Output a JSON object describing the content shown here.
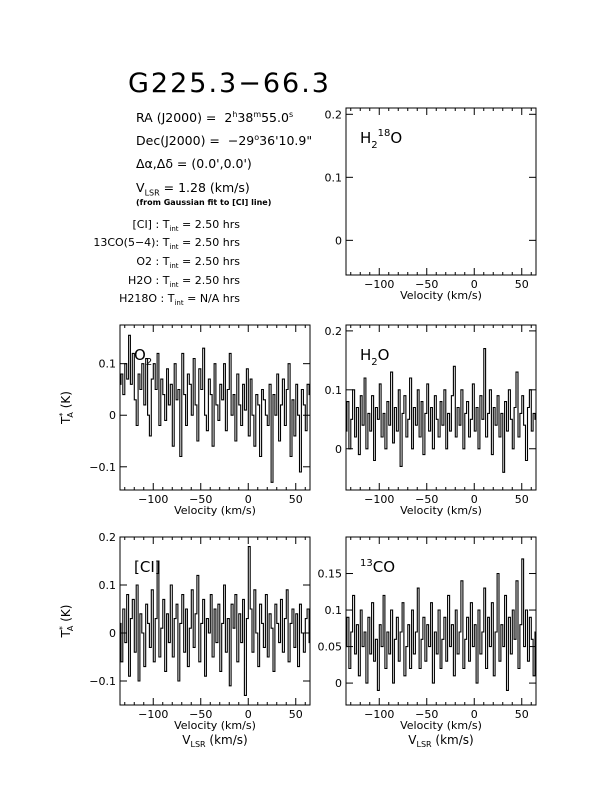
{
  "header": {
    "source": "G225.3−66.3",
    "ra_label": "RA (J2000) =",
    "ra_h": "2",
    "ra_m": "38",
    "ra_s": "55.0",
    "dec_label": "Dec(J2000) =",
    "dec_d": "−29",
    "dec_am": "36",
    "dec_as": "10.9",
    "offset_label": "Δα,Δδ =",
    "offset_value": "(0.0',0.0')",
    "vlsr_label": "V",
    "vlsr_sub": "LSR",
    "vlsr_value": " = 1.28 (km/s)",
    "vlsr_note": "(from Gaussian fit to [CI] line)"
  },
  "integration": [
    {
      "line": "[CI] :",
      "time": "2.50 hrs"
    },
    {
      "line": "13CO(5−4):",
      "time": "2.50 hrs"
    },
    {
      "line": "O2 :",
      "time": "2.50 hrs"
    },
    {
      "line": "H2O :",
      "time": "2.50 hrs"
    },
    {
      "line": "H218O :",
      "time": "N/A hrs"
    }
  ],
  "integration_label": "T",
  "integration_sub": "int",
  "integration_eq": " = ",
  "axis_labels": {
    "velocity": "Velocity (km/s)",
    "vlsr": "V",
    "vlsr_sub": "LSR",
    "vlsr_unit": " (km/s)",
    "ta": "T",
    "ta_sup": "*",
    "ta_sub": "A",
    "ta_unit": " (K)"
  },
  "colors": {
    "line": "#000000",
    "background": "#ffffff"
  },
  "chart_data": [
    {
      "type": "line",
      "label": "H218O",
      "xlim": [
        -135,
        65
      ],
      "ylim": [
        -0.055,
        0.21
      ],
      "yticks": [
        0,
        0.1,
        0.2
      ],
      "ytick_labels": [
        "0",
        "0.1",
        "0.2"
      ],
      "xticks": [
        -100,
        -50,
        0,
        50
      ],
      "xtick_labels": [
        "−100",
        "−50",
        "0",
        "50"
      ],
      "xlabel": "Velocity (km/s)",
      "x": [],
      "y": []
    },
    {
      "type": "line",
      "label": "O2",
      "xlim": [
        -135,
        65
      ],
      "ylim": [
        -0.145,
        0.175
      ],
      "yticks": [
        -0.1,
        0,
        0.1
      ],
      "ytick_labels": [
        "−0.1",
        "0",
        "0.1"
      ],
      "xticks": [
        -100,
        -50,
        0,
        50
      ],
      "xtick_labels": [
        "−100",
        "−50",
        "0",
        "50"
      ],
      "xlabel": "Velocity (km/s)",
      "x": [
        -135,
        -133,
        -131,
        -129,
        -127,
        -125,
        -123,
        -121,
        -119,
        -117,
        -115,
        -113,
        -111,
        -109,
        -107,
        -105,
        -103,
        -101,
        -99,
        -97,
        -95,
        -93,
        -91,
        -89,
        -87,
        -85,
        -83,
        -81,
        -79,
        -77,
        -75,
        -73,
        -71,
        -69,
        -67,
        -65,
        -63,
        -61,
        -59,
        -57,
        -55,
        -53,
        -51,
        -49,
        -47,
        -45,
        -43,
        -41,
        -39,
        -37,
        -35,
        -33,
        -31,
        -29,
        -27,
        -25,
        -23,
        -21,
        -19,
        -17,
        -15,
        -13,
        -11,
        -9,
        -7,
        -5,
        -3,
        -1,
        1,
        3,
        5,
        7,
        9,
        11,
        13,
        15,
        17,
        19,
        21,
        23,
        25,
        27,
        29,
        31,
        33,
        35,
        37,
        39,
        41,
        43,
        45,
        47,
        49,
        51,
        53,
        55,
        57,
        59,
        61,
        63,
        65
      ],
      "y": [
        0.06,
        0.08,
        0.04,
        0.1,
        0.07,
        0.155,
        0.06,
        0.12,
        0.03,
        -0.02,
        0.08,
        0.05,
        0.1,
        0.02,
        0.11,
        0.0,
        -0.04,
        0.07,
        0.1,
        0.05,
        0.12,
        -0.02,
        0.07,
        0.04,
        -0.01,
        0.09,
        0.02,
        0.06,
        -0.06,
        0.1,
        0.03,
        0.05,
        -0.08,
        0.12,
        0.04,
        -0.02,
        0.08,
        0.06,
        0.0,
        0.11,
        0.02,
        -0.05,
        0.09,
        0.05,
        0.13,
        0.0,
        -0.03,
        0.07,
        0.04,
        -0.06,
        0.1,
        0.02,
        -0.01,
        0.06,
        0.03,
        0.1,
        -0.03,
        0.05,
        0.12,
        0.0,
        0.04,
        -0.05,
        0.08,
        0.02,
        -0.02,
        0.06,
        0.01,
        0.09,
        -0.04,
        0.07,
        0.0,
        -0.06,
        0.04,
        0.02,
        -0.08,
        0.05,
        0.03,
        0.0,
        -0.02,
        0.06,
        -0.13,
        0.04,
        0.0,
        0.08,
        -0.05,
        0.02,
        0.07,
        -0.02,
        0.05,
        0.1,
        -0.08,
        0.03,
        -0.04,
        0.06,
        0.0,
        -0.11,
        0.05,
        0.02,
        -0.03,
        0.06,
        0.04
      ]
    },
    {
      "type": "line",
      "label": "H2O",
      "xlim": [
        -135,
        65
      ],
      "ylim": [
        -0.07,
        0.21
      ],
      "yticks": [
        0,
        0.1,
        0.2
      ],
      "ytick_labels": [
        "0",
        "0.1",
        "0.2"
      ],
      "xticks": [
        -100,
        -50,
        0,
        50
      ],
      "xtick_labels": [
        "−100",
        "−50",
        "0",
        "50"
      ],
      "xlabel": "Velocity (km/s)",
      "x": [
        -135,
        -133,
        -131,
        -129,
        -127,
        -125,
        -123,
        -121,
        -119,
        -117,
        -115,
        -113,
        -111,
        -109,
        -107,
        -105,
        -103,
        -101,
        -99,
        -97,
        -95,
        -93,
        -91,
        -89,
        -87,
        -85,
        -83,
        -81,
        -79,
        -77,
        -75,
        -73,
        -71,
        -69,
        -67,
        -65,
        -63,
        -61,
        -59,
        -57,
        -55,
        -53,
        -51,
        -49,
        -47,
        -45,
        -43,
        -41,
        -39,
        -37,
        -35,
        -33,
        -31,
        -29,
        -27,
        -25,
        -23,
        -21,
        -19,
        -17,
        -15,
        -13,
        -11,
        -9,
        -7,
        -5,
        -3,
        -1,
        1,
        3,
        5,
        7,
        9,
        11,
        13,
        15,
        17,
        19,
        21,
        23,
        25,
        27,
        29,
        31,
        33,
        35,
        37,
        39,
        41,
        43,
        45,
        47,
        49,
        51,
        53,
        55,
        57,
        59,
        61,
        63,
        65
      ],
      "y": [
        0.03,
        0.08,
        0.0,
        0.05,
        0.1,
        0.02,
        0.07,
        -0.01,
        0.09,
        0.04,
        0.12,
        0.0,
        0.06,
        0.03,
        0.09,
        -0.02,
        0.07,
        0.05,
        0.11,
        0.02,
        0.06,
        0.0,
        0.08,
        0.04,
        0.13,
        0.01,
        0.07,
        0.03,
        0.1,
        -0.03,
        0.06,
        0.09,
        0.02,
        0.05,
        0.12,
        0.0,
        0.07,
        0.04,
        0.1,
        0.02,
        0.08,
        -0.01,
        0.06,
        0.11,
        0.03,
        0.07,
        0.0,
        0.09,
        0.05,
        0.02,
        0.08,
        0.04,
        0.1,
        0.0,
        0.06,
        0.03,
        0.09,
        0.14,
        0.02,
        0.07,
        0.04,
        0.1,
        0.0,
        0.06,
        0.08,
        0.02,
        0.05,
        0.11,
        0.03,
        0.07,
        0.0,
        0.09,
        0.05,
        0.17,
        0.02,
        0.06,
        0.1,
        -0.01,
        0.07,
        0.04,
        0.09,
        0.02,
        0.06,
        -0.04,
        0.08,
        0.03,
        0.1,
        0.05,
        0.0,
        0.07,
        0.13,
        0.02,
        0.06,
        0.09,
        0.04,
        -0.02,
        0.07,
        0.1,
        0.03,
        0.06,
        0.05
      ]
    },
    {
      "type": "line",
      "label": "[CI]",
      "xlim": [
        -135,
        65
      ],
      "ylim": [
        -0.15,
        0.2
      ],
      "yticks": [
        -0.1,
        0,
        0.1,
        0.2
      ],
      "ytick_labels": [
        "−0.1",
        "0",
        "0.1",
        "0.2"
      ],
      "xticks": [
        -100,
        -50,
        0,
        50
      ],
      "xtick_labels": [
        "−100",
        "−50",
        "0",
        "50"
      ],
      "xlabel": "Velocity (km/s)",
      "x": [
        -135,
        -133,
        -131,
        -129,
        -127,
        -125,
        -123,
        -121,
        -119,
        -117,
        -115,
        -113,
        -111,
        -109,
        -107,
        -105,
        -103,
        -101,
        -99,
        -97,
        -95,
        -93,
        -91,
        -89,
        -87,
        -85,
        -83,
        -81,
        -79,
        -77,
        -75,
        -73,
        -71,
        -69,
        -67,
        -65,
        -63,
        -61,
        -59,
        -57,
        -55,
        -53,
        -51,
        -49,
        -47,
        -45,
        -43,
        -41,
        -39,
        -37,
        -35,
        -33,
        -31,
        -29,
        -27,
        -25,
        -23,
        -21,
        -19,
        -17,
        -15,
        -13,
        -11,
        -9,
        -7,
        -5,
        -3,
        -1,
        1,
        3,
        5,
        7,
        9,
        11,
        13,
        15,
        17,
        19,
        21,
        23,
        25,
        27,
        29,
        31,
        33,
        35,
        37,
        39,
        41,
        43,
        45,
        47,
        49,
        51,
        53,
        55,
        57,
        59,
        61,
        63,
        65
      ],
      "y": [
        0.02,
        -0.06,
        0.05,
        -0.02,
        0.08,
        -0.09,
        0.03,
        0.07,
        -0.04,
        0.1,
        -0.1,
        0.04,
        0.0,
        -0.07,
        0.06,
        0.02,
        -0.03,
        0.09,
        -0.06,
        0.03,
        0.15,
        -0.05,
        0.01,
        0.07,
        -0.08,
        0.04,
        -0.02,
        0.1,
        -0.05,
        0.03,
        0.06,
        -0.1,
        0.02,
        0.08,
        -0.04,
        0.05,
        -0.07,
        0.01,
        0.09,
        -0.03,
        0.04,
        0.12,
        -0.06,
        0.02,
        0.07,
        -0.09,
        0.03,
        0.0,
        0.08,
        -0.05,
        0.05,
        -0.02,
        0.06,
        -0.08,
        0.02,
        0.1,
        -0.04,
        0.03,
        -0.11,
        0.06,
        0.01,
        0.08,
        -0.06,
        0.04,
        -0.02,
        0.07,
        -0.13,
        0.03,
        0.18,
        0.05,
        -0.04,
        0.09,
        0.0,
        -0.07,
        0.06,
        0.02,
        -0.03,
        0.08,
        -0.05,
        0.04,
        0.01,
        -0.08,
        0.06,
        0.02,
        -0.02,
        0.07,
        -0.04,
        0.03,
        0.09,
        -0.06,
        0.02,
        0.05,
        -0.03,
        0.04,
        -0.07,
        0.06,
        0.0,
        -0.04,
        0.03,
        0.05,
        -0.02
      ]
    },
    {
      "type": "line",
      "label": "13CO",
      "xlim": [
        -135,
        65
      ],
      "ylim": [
        -0.03,
        0.2
      ],
      "yticks": [
        0,
        0.05,
        0.1,
        0.15
      ],
      "ytick_labels": [
        "0",
        "0.05",
        "0.1",
        "0.15"
      ],
      "xticks": [
        -100,
        -50,
        0,
        50
      ],
      "xtick_labels": [
        "−100",
        "−50",
        "0",
        "50"
      ],
      "xlabel": "Velocity (km/s)",
      "x": [
        -135,
        -133,
        -131,
        -129,
        -127,
        -125,
        -123,
        -121,
        -119,
        -117,
        -115,
        -113,
        -111,
        -109,
        -107,
        -105,
        -103,
        -101,
        -99,
        -97,
        -95,
        -93,
        -91,
        -89,
        -87,
        -85,
        -83,
        -81,
        -79,
        -77,
        -75,
        -73,
        -71,
        -69,
        -67,
        -65,
        -63,
        -61,
        -59,
        -57,
        -55,
        -53,
        -51,
        -49,
        -47,
        -45,
        -43,
        -41,
        -39,
        -37,
        -35,
        -33,
        -31,
        -29,
        -27,
        -25,
        -23,
        -21,
        -19,
        -17,
        -15,
        -13,
        -11,
        -9,
        -7,
        -5,
        -3,
        -1,
        1,
        3,
        5,
        7,
        9,
        11,
        13,
        15,
        17,
        19,
        21,
        23,
        25,
        27,
        29,
        31,
        33,
        35,
        37,
        39,
        41,
        43,
        45,
        47,
        49,
        51,
        53,
        55,
        57,
        59,
        61,
        63,
        65
      ],
      "y": [
        0.05,
        0.09,
        0.02,
        0.07,
        0.12,
        0.04,
        0.08,
        0.01,
        0.1,
        0.05,
        0.07,
        0.0,
        0.09,
        0.04,
        0.11,
        0.03,
        0.06,
        -0.01,
        0.08,
        0.05,
        0.12,
        0.02,
        0.07,
        0.04,
        0.1,
        0.0,
        0.06,
        0.09,
        0.03,
        0.07,
        0.11,
        0.01,
        0.05,
        0.08,
        0.02,
        0.1,
        0.04,
        0.07,
        0.13,
        0.02,
        0.06,
        0.09,
        0.03,
        0.08,
        0.05,
        0.11,
        0.0,
        0.07,
        0.04,
        0.1,
        0.02,
        0.06,
        0.09,
        0.03,
        0.12,
        0.05,
        0.08,
        0.01,
        0.1,
        0.04,
        0.07,
        0.14,
        0.02,
        0.06,
        0.09,
        0.03,
        0.11,
        0.05,
        0.08,
        0.0,
        0.1,
        0.04,
        0.07,
        0.13,
        0.02,
        0.09,
        0.05,
        0.11,
        0.01,
        0.07,
        0.15,
        0.03,
        0.08,
        0.05,
        0.12,
        -0.01,
        0.09,
        0.04,
        0.1,
        0.06,
        0.14,
        0.02,
        0.08,
        0.17,
        0.05,
        0.1,
        0.03,
        0.09,
        0.06,
        0.01,
        0.07
      ]
    }
  ]
}
